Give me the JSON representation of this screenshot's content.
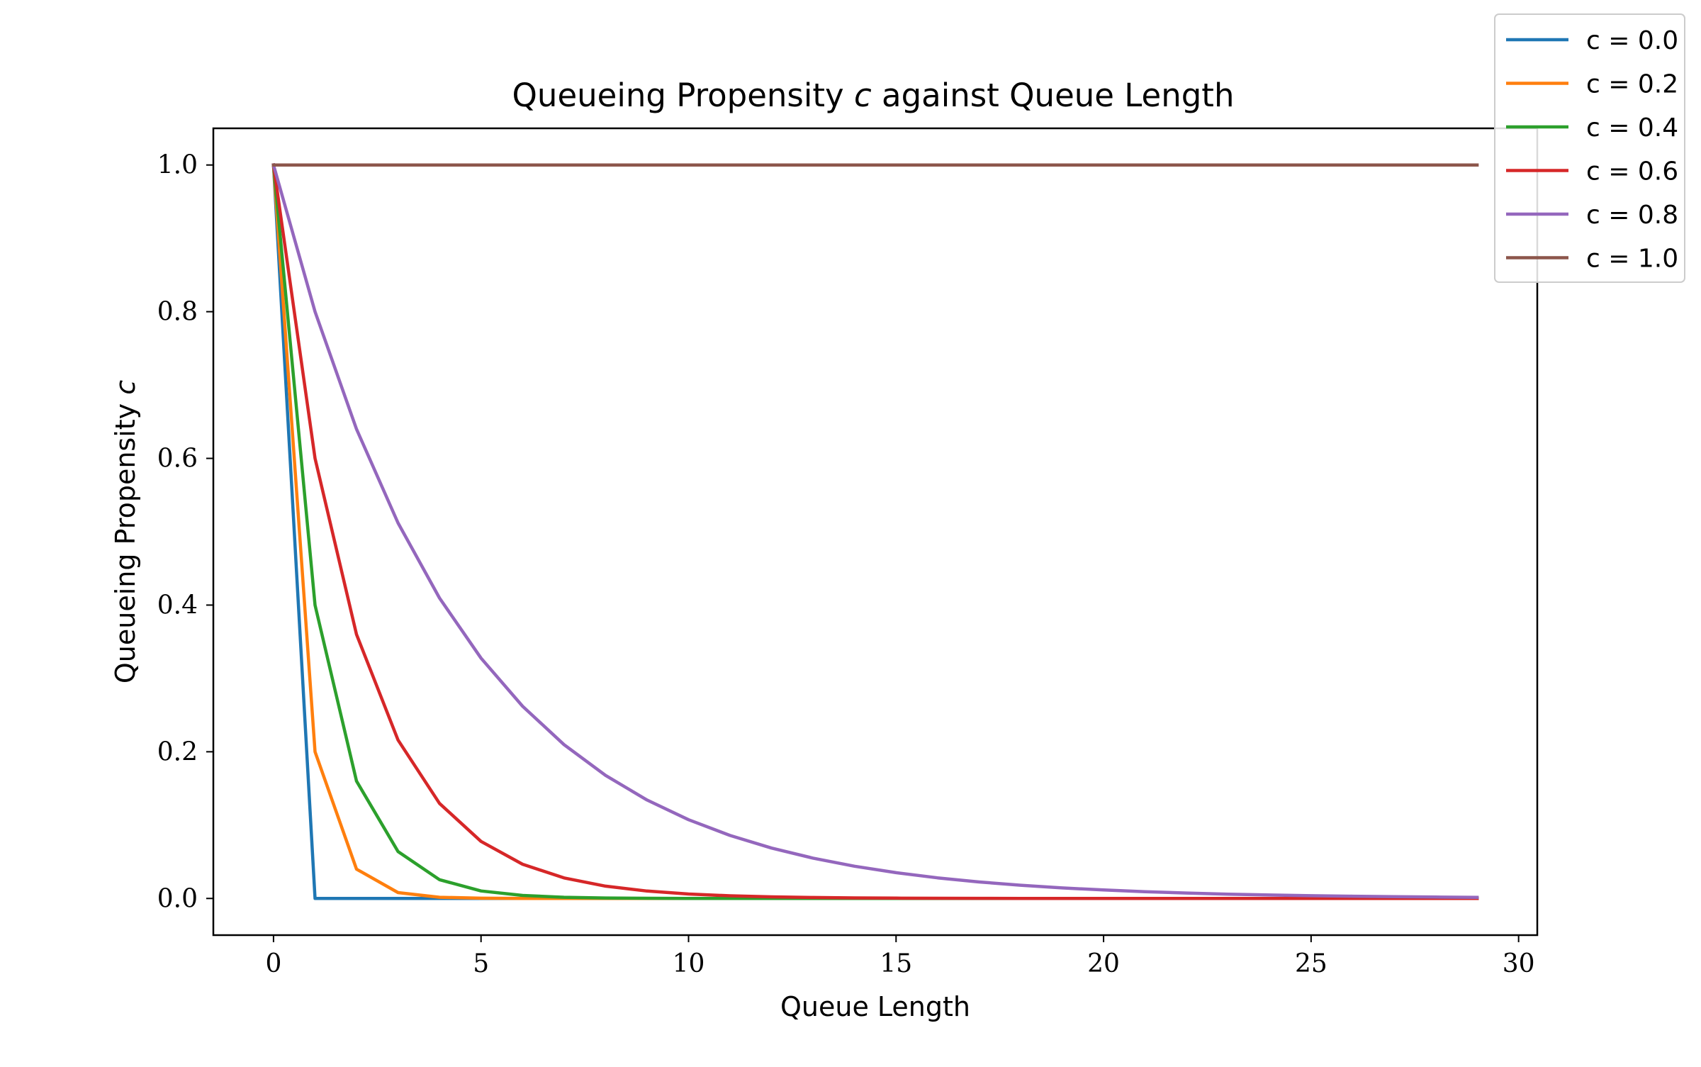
{
  "chart_data": {
    "type": "line",
    "title_prefix": "Queueing Propensity ",
    "title_var": "c",
    "title_suffix": " against Queue Length",
    "xlabel": "Queue Length",
    "ylabel_prefix": "Queueing Propensity ",
    "ylabel_var": "c",
    "xlim": [
      -1.45,
      30.45
    ],
    "ylim": [
      -0.05,
      1.05
    ],
    "xticks": [
      0,
      5,
      10,
      15,
      20,
      25,
      30
    ],
    "xtick_labels": [
      "0",
      "5",
      "10",
      "15",
      "20",
      "25",
      "30"
    ],
    "yticks": [
      0.0,
      0.2,
      0.4,
      0.6,
      0.8,
      1.0
    ],
    "ytick_labels": [
      "0.0",
      "0.2",
      "0.4",
      "0.6",
      "0.8",
      "1.0"
    ],
    "grid": false,
    "legend_position": "top-right",
    "x": [
      0,
      1,
      2,
      3,
      4,
      5,
      6,
      7,
      8,
      9,
      10,
      11,
      12,
      13,
      14,
      15,
      16,
      17,
      18,
      19,
      20,
      21,
      22,
      23,
      24,
      25,
      26,
      27,
      28,
      29
    ],
    "series": [
      {
        "name": "c = 0.0",
        "color": "#1f77b4",
        "values": [
          1,
          0,
          0,
          0,
          0,
          0,
          0,
          0,
          0,
          0,
          0,
          0,
          0,
          0,
          0,
          0,
          0,
          0,
          0,
          0,
          0,
          0,
          0,
          0,
          0,
          0,
          0,
          0,
          0,
          0
        ]
      },
      {
        "name": "c = 0.2",
        "color": "#ff7f0e",
        "values": [
          1,
          0.2,
          0.04,
          0.008,
          0.0016,
          0.00032,
          6.4e-05,
          1.28e-05,
          0,
          0,
          0,
          0,
          0,
          0,
          0,
          0,
          0,
          0,
          0,
          0,
          0,
          0,
          0,
          0,
          0,
          0,
          0,
          0,
          0,
          0
        ]
      },
      {
        "name": "c = 0.4",
        "color": "#2ca02c",
        "values": [
          1,
          0.4,
          0.16,
          0.064,
          0.0256,
          0.01024,
          0.0041,
          0.00164,
          0.00066,
          0.00026,
          0.0001,
          4e-05,
          2e-05,
          1e-05,
          0,
          0,
          0,
          0,
          0,
          0,
          0,
          0,
          0,
          0,
          0,
          0,
          0,
          0,
          0,
          0
        ]
      },
      {
        "name": "c = 0.6",
        "color": "#d62728",
        "values": [
          1,
          0.6,
          0.36,
          0.216,
          0.1296,
          0.07776,
          0.04666,
          0.02799,
          0.0168,
          0.01008,
          0.00605,
          0.00363,
          0.00218,
          0.00131,
          0.00078,
          0.00047,
          0.00028,
          0.00017,
          0.0001,
          6e-05,
          4e-05,
          2e-05,
          1e-05,
          1e-05,
          0,
          0,
          0,
          0,
          0,
          0
        ]
      },
      {
        "name": "c = 0.8",
        "color": "#9467bd",
        "values": [
          1,
          0.8,
          0.64,
          0.512,
          0.4096,
          0.32768,
          0.26214,
          0.20972,
          0.16777,
          0.13422,
          0.10737,
          0.0859,
          0.06872,
          0.05498,
          0.04398,
          0.03518,
          0.02815,
          0.02252,
          0.01801,
          0.01441,
          0.01153,
          0.00922,
          0.00738,
          0.0059,
          0.00472,
          0.00378,
          0.00302,
          0.00242,
          0.00193,
          0.00155
        ]
      },
      {
        "name": "c = 1.0",
        "color": "#8c564b",
        "values": [
          1,
          1,
          1,
          1,
          1,
          1,
          1,
          1,
          1,
          1,
          1,
          1,
          1,
          1,
          1,
          1,
          1,
          1,
          1,
          1,
          1,
          1,
          1,
          1,
          1,
          1,
          1,
          1,
          1,
          1
        ]
      }
    ]
  }
}
